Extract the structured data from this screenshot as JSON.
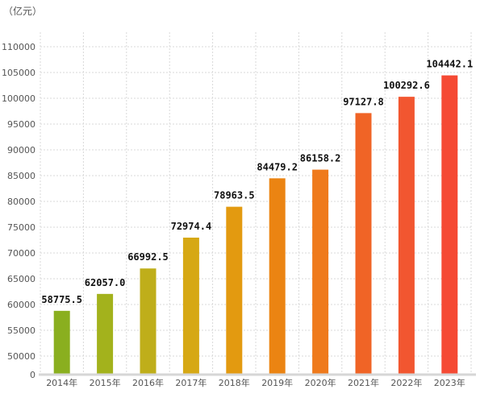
{
  "chart_data": {
    "type": "bar",
    "unit_label": "（亿元）",
    "categories": [
      "2014年",
      "2015年",
      "2016年",
      "2017年",
      "2018年",
      "2019年",
      "2020年",
      "2021年",
      "2022年",
      "2023年"
    ],
    "values": [
      58775.5,
      62057.0,
      66992.5,
      72974.4,
      78963.5,
      84479.2,
      86158.2,
      97127.8,
      100292.6,
      104442.1
    ],
    "value_labels": [
      "58775.5",
      "62057.0",
      "66992.5",
      "72974.4",
      "78963.5",
      "84479.2",
      "86158.2",
      "97127.8",
      "100292.6",
      "104442.1"
    ],
    "bar_colors": [
      "#8aaf1f",
      "#a3b21c",
      "#bfae1a",
      "#d6a814",
      "#e39a10",
      "#eb8412",
      "#ef7a1c",
      "#f06426",
      "#f25630",
      "#f54a34"
    ],
    "y_ticks": [
      0,
      50000,
      55000,
      60000,
      65000,
      70000,
      75000,
      80000,
      85000,
      90000,
      95000,
      100000,
      105000,
      110000
    ],
    "y_tick_labels": [
      "0",
      "50000",
      "55000",
      "60000",
      "65000",
      "70000",
      "75000",
      "80000",
      "85000",
      "90000",
      "95000",
      "100000",
      "105000",
      "110000"
    ],
    "ylim": [
      45000,
      110000
    ],
    "y_axis_break": true,
    "grid": true
  }
}
